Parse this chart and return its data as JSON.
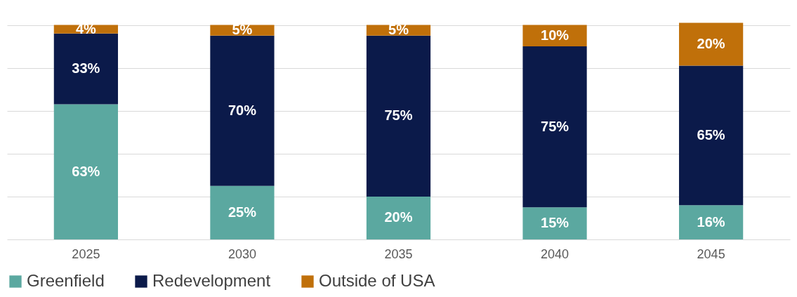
{
  "chart_data": {
    "type": "bar",
    "stacked": true,
    "categories": [
      "2025",
      "2030",
      "2035",
      "2040",
      "2045"
    ],
    "series": [
      {
        "name": "Greenfield",
        "color": "#5ba8a0",
        "values": [
          63,
          25,
          20,
          15,
          16
        ],
        "value_labels": [
          "63%",
          "25%",
          "20%",
          "15%",
          "16%"
        ]
      },
      {
        "name": "Redevelopment",
        "color": "#0b1a4a",
        "values": [
          33,
          70,
          75,
          75,
          65
        ],
        "value_labels": [
          "33%",
          "70%",
          "75%",
          "75%",
          "65%"
        ]
      },
      {
        "name": "Outside of USA",
        "color": "#c0700a",
        "values": [
          4,
          5,
          5,
          10,
          20
        ],
        "value_labels": [
          "4%",
          "5%",
          "5%",
          "10%",
          "20%"
        ]
      }
    ],
    "tick_labels": "x",
    "grid": "y",
    "legend": "bottom"
  }
}
